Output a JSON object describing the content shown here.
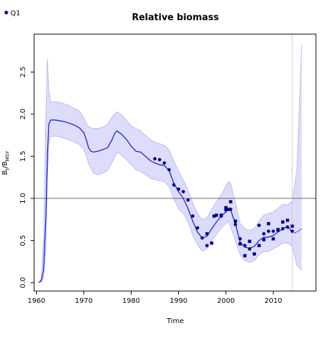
{
  "chart_data": {
    "type": "line",
    "title": "Relative biomass",
    "xlabel": "Time",
    "ylabel_main": "B",
    "ylabel_sub1": "t",
    "ylabel_sep": "/B",
    "ylabel_sub2": "MSY",
    "xlim": [
      1959.5,
      2019
    ],
    "ylim": [
      -0.1,
      2.95
    ],
    "xticks": [
      1960,
      1970,
      1980,
      1990,
      2000,
      2010
    ],
    "yticks": [
      0.0,
      0.5,
      1.0,
      1.5,
      2.0,
      2.5
    ],
    "reference_line_y": 1.0,
    "vertical_line_x": 2014,
    "colors": {
      "series": "#1010dd",
      "band": "#dcdcfb",
      "band_edge": "#aaaaf5",
      "reference": "#666666",
      "points": "#000090"
    },
    "legend": {
      "placement": "top-left",
      "entries": [
        "Q1"
      ]
    },
    "series": [
      {
        "kind": "estimate",
        "x": [
          1960.5,
          1961,
          1961.5,
          1962,
          1962.3,
          1962.6,
          1963,
          1964,
          1965,
          1966,
          1967,
          1968,
          1969,
          1970,
          1970.5,
          1971,
          1971.5,
          1972,
          1973,
          1974,
          1975,
          1976,
          1976.5,
          1977,
          1978,
          1979,
          1980,
          1981,
          1982,
          1983,
          1984,
          1985,
          1986,
          1987,
          1988,
          1989,
          1990,
          1991,
          1992,
          1993,
          1994,
          1995,
          1996,
          1997,
          1998,
          1999,
          2000,
          2000.5,
          2001,
          2002,
          2003,
          2004,
          2005,
          2006,
          2007,
          2008,
          2009,
          2010,
          2011,
          2012,
          2013,
          2014
        ],
        "y": [
          0.0,
          0.02,
          0.15,
          0.8,
          1.5,
          1.88,
          1.93,
          1.93,
          1.92,
          1.91,
          1.89,
          1.87,
          1.84,
          1.78,
          1.7,
          1.6,
          1.56,
          1.55,
          1.56,
          1.58,
          1.6,
          1.7,
          1.77,
          1.8,
          1.76,
          1.7,
          1.62,
          1.56,
          1.55,
          1.5,
          1.45,
          1.42,
          1.4,
          1.39,
          1.33,
          1.18,
          1.08,
          1.0,
          0.88,
          0.73,
          0.6,
          0.53,
          0.55,
          0.64,
          0.72,
          0.79,
          0.84,
          0.88,
          0.86,
          0.7,
          0.48,
          0.42,
          0.41,
          0.43,
          0.5,
          0.54,
          0.54,
          0.56,
          0.6,
          0.64,
          0.67,
          0.6
        ]
      },
      {
        "kind": "upper_ci",
        "x": [
          1960.5,
          1961,
          1961.5,
          1962,
          1962.3,
          1962.6,
          1963,
          1964,
          1965,
          1966,
          1967,
          1968,
          1969,
          1970,
          1970.5,
          1971,
          1972,
          1973,
          1974,
          1975,
          1976,
          1977,
          1978,
          1979,
          1980,
          1981,
          1982,
          1983,
          1984,
          1985,
          1986,
          1987,
          1988,
          1989,
          1990,
          1991,
          1992,
          1993,
          1994,
          1995,
          1996,
          1997,
          1998,
          1999,
          2000,
          2000.5,
          2001,
          2002,
          2003,
          2004,
          2005,
          2006,
          2007,
          2008,
          2009,
          2010,
          2011,
          2012,
          2013,
          2014,
          2015,
          2016
        ],
        "y": [
          0.0,
          0.05,
          0.5,
          2.0,
          2.66,
          2.3,
          2.14,
          2.15,
          2.14,
          2.12,
          2.1,
          2.07,
          2.04,
          1.96,
          1.89,
          1.85,
          1.83,
          1.83,
          1.85,
          1.88,
          1.97,
          2.03,
          1.99,
          1.93,
          1.86,
          1.83,
          1.8,
          1.75,
          1.7,
          1.67,
          1.65,
          1.63,
          1.58,
          1.45,
          1.32,
          1.22,
          1.1,
          0.95,
          0.82,
          0.75,
          0.77,
          0.87,
          0.96,
          1.04,
          1.15,
          1.2,
          1.18,
          0.95,
          0.7,
          0.64,
          0.62,
          0.64,
          0.73,
          0.8,
          0.82,
          0.84,
          0.88,
          0.93,
          0.92,
          0.97,
          1.35,
          2.82
        ]
      },
      {
        "kind": "lower_ci",
        "x": [
          1960.5,
          1961,
          1961.5,
          1962,
          1962.3,
          1962.6,
          1963,
          1964,
          1965,
          1966,
          1967,
          1968,
          1969,
          1970,
          1970.5,
          1971,
          1972,
          1973,
          1974,
          1975,
          1976,
          1977,
          1978,
          1979,
          1980,
          1981,
          1982,
          1983,
          1984,
          1985,
          1986,
          1987,
          1988,
          1989,
          1990,
          1991,
          1992,
          1993,
          1994,
          1995,
          1996,
          1997,
          1998,
          1999,
          2000,
          2000.5,
          2001,
          2002,
          2003,
          2004,
          2005,
          2006,
          2007,
          2008,
          2009,
          2010,
          2011,
          2012,
          2013,
          2014,
          2015,
          2016
        ],
        "y": [
          0.0,
          0.01,
          0.05,
          0.4,
          1.2,
          1.65,
          1.74,
          1.74,
          1.73,
          1.71,
          1.69,
          1.67,
          1.64,
          1.58,
          1.5,
          1.41,
          1.3,
          1.28,
          1.3,
          1.33,
          1.43,
          1.55,
          1.51,
          1.46,
          1.4,
          1.34,
          1.32,
          1.28,
          1.24,
          1.22,
          1.21,
          1.2,
          1.14,
          0.99,
          0.88,
          0.82,
          0.72,
          0.56,
          0.45,
          0.37,
          0.4,
          0.5,
          0.57,
          0.65,
          0.7,
          0.73,
          0.66,
          0.5,
          0.33,
          0.26,
          0.24,
          0.26,
          0.33,
          0.37,
          0.37,
          0.4,
          0.43,
          0.47,
          0.47,
          0.43,
          0.2,
          0.15
        ]
      },
      {
        "kind": "prediction",
        "x": [
          2014,
          2014.5,
          2015,
          2015.5,
          2016
        ],
        "y": [
          0.6,
          0.59,
          0.6,
          0.62,
          0.64
        ]
      }
    ],
    "points_circle": {
      "x": [
        1985,
        1986,
        1987,
        1988,
        1989,
        1990,
        1991,
        1992,
        1993,
        1994,
        1995,
        1996,
        2007,
        2008,
        2009,
        2010,
        2011
      ],
      "y": [
        1.47,
        1.46,
        1.42,
        1.34,
        1.16,
        1.11,
        1.08,
        0.98,
        0.79,
        0.65,
        0.53,
        0.44,
        0.68,
        0.58,
        0.61,
        0.61,
        0.62
      ]
    },
    "points_square": {
      "x": [
        1996,
        1997,
        1997.5,
        1998,
        1999,
        2000,
        2000.5,
        2001,
        2002,
        2003,
        2004,
        2005,
        2006,
        2007,
        2008,
        2009,
        2010,
        2011,
        2012,
        2013,
        2014
      ],
      "y": [
        0.58,
        0.47,
        0.79,
        0.8,
        0.8,
        0.89,
        0.87,
        0.96,
        0.73,
        0.46,
        0.32,
        0.49,
        0.34,
        0.44,
        0.51,
        0.7,
        0.52,
        0.63,
        0.72,
        0.74,
        0.67
      ]
    },
    "points_extra_circle": {
      "x": [
        1999,
        2000,
        2001,
        2002,
        2003,
        2004,
        2005,
        2012,
        2013,
        2014
      ],
      "y": [
        0.79,
        0.86,
        0.87,
        0.69,
        0.52,
        0.44,
        0.4,
        0.64,
        0.66,
        0.61
      ]
    }
  }
}
